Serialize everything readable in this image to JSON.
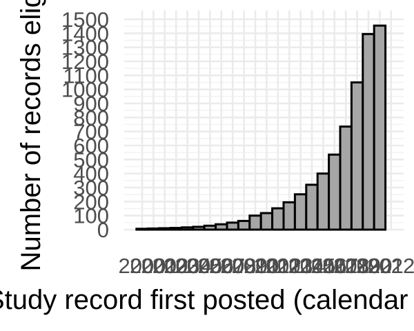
{
  "chart_data": {
    "type": "bar",
    "title": "",
    "xlabel": "Study record first posted (calendar year)",
    "ylabel": "Number of records eligible",
    "categories": [
      "2000",
      "2001",
      "2002",
      "2003",
      "2004",
      "2005",
      "2006",
      "2007",
      "2008",
      "2009",
      "2010",
      "2011",
      "2012",
      "2013",
      "2014",
      "2015",
      "2016",
      "2017",
      "2018",
      "2019",
      "2020",
      "2021",
      "2022"
    ],
    "values": [
      6,
      8,
      10,
      12,
      16,
      20,
      28,
      38,
      50,
      62,
      100,
      118,
      152,
      195,
      252,
      320,
      400,
      535,
      735,
      1050,
      1395,
      1455,
      0
    ],
    "ylim": [
      0,
      1500
    ],
    "yticks": [
      0,
      100,
      200,
      300,
      400,
      500,
      600,
      700,
      800,
      900,
      1000,
      1100,
      1200,
      1300,
      1400,
      1500
    ],
    "xticks": [
      "2000",
      "2001",
      "2002",
      "2003",
      "2004",
      "2005",
      "2006",
      "2007",
      "2008",
      "2009",
      "2010",
      "2011",
      "2012",
      "2013",
      "2014",
      "2015",
      "2016",
      "2017",
      "2018",
      "2019",
      "2020",
      "2021",
      "2022"
    ],
    "grid": true,
    "bar_color": "#a6a6a6",
    "bar_border_color": "#000000",
    "grid_color": "#ebebeb"
  }
}
